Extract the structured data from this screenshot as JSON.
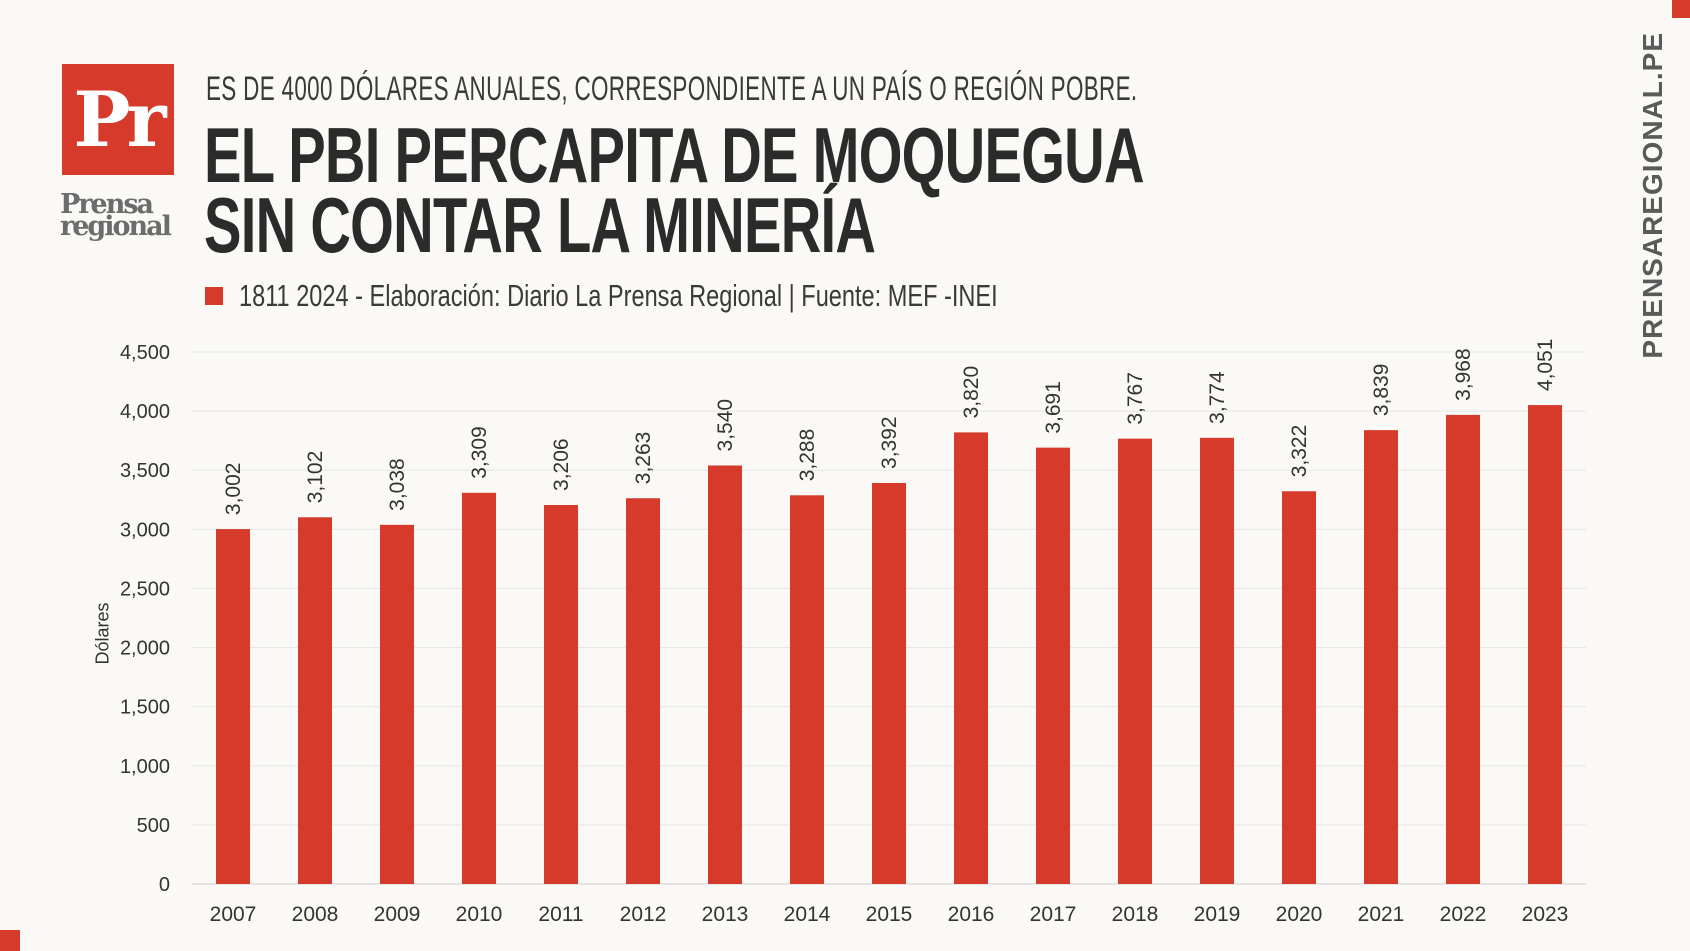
{
  "brand": {
    "logo_mark": "Pr",
    "logo_name_line1": "Prensa",
    "logo_name_line2": "regional",
    "site": "PRENSAREGIONAL.PE",
    "accent_color": "#d63a2a"
  },
  "header": {
    "subtitle": "ES DE  4000 DÓLARES ANUALES, CORRESPONDIENTE A UN PAÍS O REGIÓN POBRE.",
    "title_line1": "EL PBI PERCAPITA DE MOQUEGUA",
    "title_line2": "SIN CONTAR LA MINERÍA"
  },
  "legend": {
    "text": "1811 2024 - Elaboración: Diario La Prensa Regional | Fuente: MEF -INEI"
  },
  "chart_data": {
    "type": "bar",
    "categories": [
      "2007",
      "2008",
      "2009",
      "2010",
      "2011",
      "2012",
      "2013",
      "2014",
      "2015",
      "2016",
      "2017",
      "2018",
      "2019",
      "2020",
      "2021",
      "2022",
      "2023"
    ],
    "values": [
      3002,
      3102,
      3038,
      3309,
      3206,
      3263,
      3540,
      3288,
      3392,
      3820,
      3691,
      3767,
      3774,
      3322,
      3839,
      3968,
      4051
    ],
    "value_labels": [
      "3,002",
      "3,102",
      "3,038",
      "3,309",
      "3,206",
      "3,263",
      "3,540",
      "3,288",
      "3,392",
      "3,820",
      "3,691",
      "3,767",
      "3,774",
      "3,322",
      "3,839",
      "3,968",
      "4,051"
    ],
    "ylabel": "Dólares",
    "ylim": [
      0,
      4500
    ],
    "yticks": [
      0,
      500,
      1000,
      1500,
      2000,
      2500,
      3000,
      3500,
      4000,
      4500
    ],
    "ytick_labels": [
      "0",
      "500",
      "1,000",
      "1,500",
      "2,000",
      "2,500",
      "3,000",
      "3,500",
      "4,000",
      "4,500"
    ],
    "grid": true,
    "bar_color": "#d63a2a"
  }
}
